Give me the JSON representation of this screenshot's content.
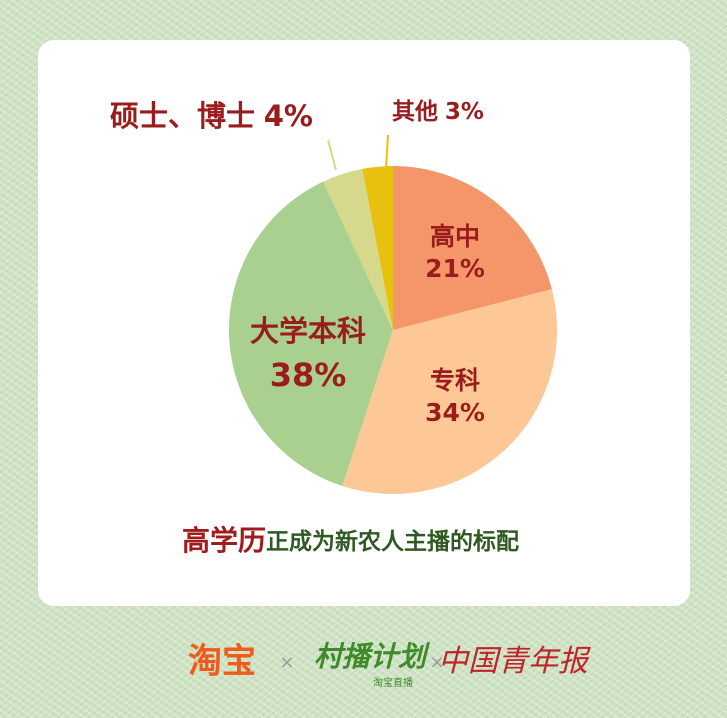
{
  "chart_data": {
    "type": "pie",
    "title_parts": [
      "高学历",
      "正成为新农人主播的标配"
    ],
    "categories": [
      "高中",
      "专科",
      "大学本科",
      "硕士、博士",
      "其他"
    ],
    "values": [
      21,
      34,
      38,
      4,
      3
    ],
    "value_labels": [
      "21%",
      "34%",
      "38%",
      "4%",
      "3%"
    ],
    "colors": [
      "#f4956a",
      "#fdc896",
      "#a9d08e",
      "#d6d88c",
      "#e6c20f"
    ]
  },
  "footer": {
    "logos": [
      "淘宝",
      "村播计划",
      "淘宝直播",
      "中国青年报"
    ]
  }
}
